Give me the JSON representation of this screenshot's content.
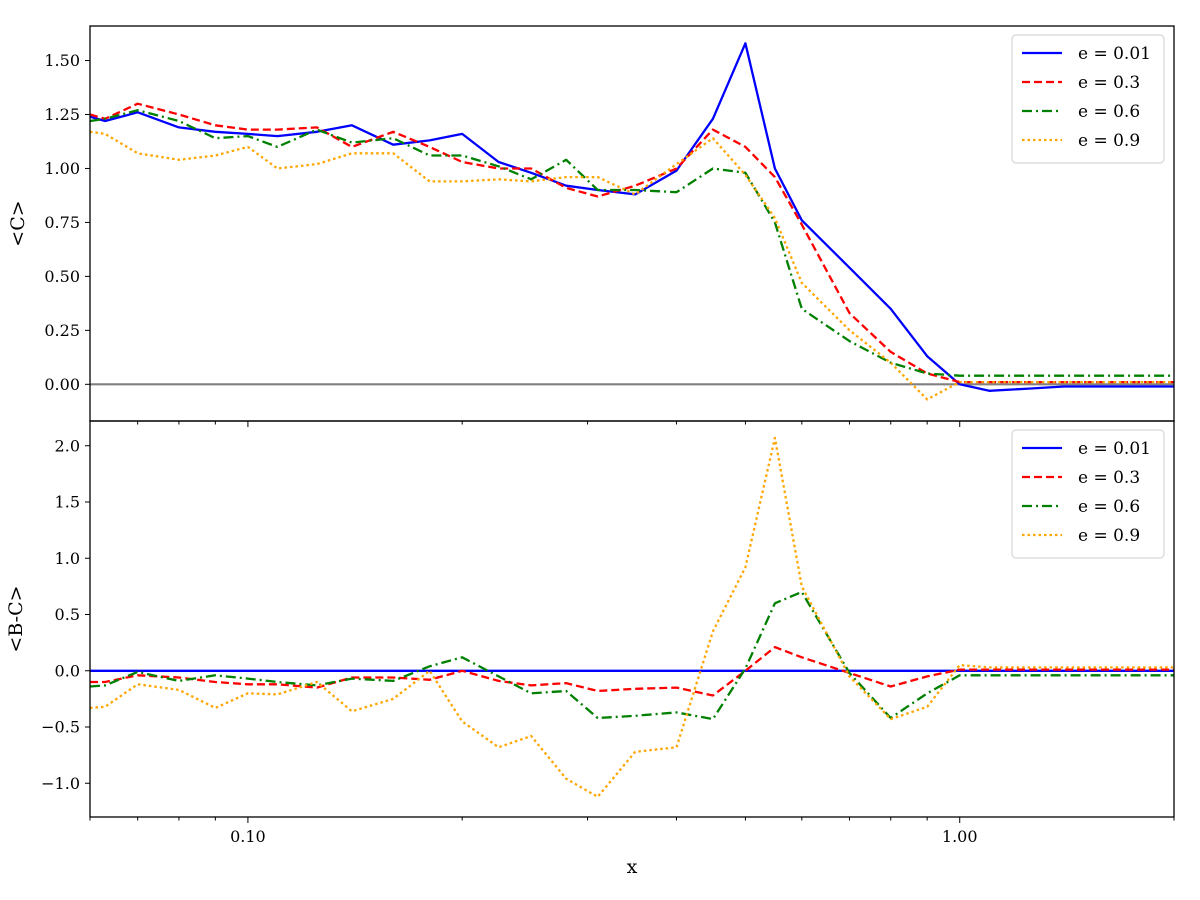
{
  "chart_data": [
    {
      "type": "line",
      "title": "",
      "xlabel": "",
      "ylabel": "<C>",
      "xscale": "log",
      "xlim": [
        0.06,
        2.0
      ],
      "ylim": [
        -0.17,
        1.66
      ],
      "yticks": [
        0.0,
        0.25,
        0.5,
        0.75,
        1.0,
        1.25,
        1.5
      ],
      "ytick_labels": [
        "0.00",
        "0.25",
        "0.50",
        "0.75",
        "1.00",
        "1.25",
        "1.50"
      ],
      "show_xtick_labels": false,
      "hline": {
        "y": 0.0,
        "color": "#808080"
      },
      "legend_position": "top-right",
      "series": [
        {
          "name": "e = 0.01",
          "color": "#0000ff",
          "style": "solid",
          "x": [
            0.06,
            0.063,
            0.07,
            0.08,
            0.09,
            0.1,
            0.11,
            0.125,
            0.14,
            0.16,
            0.18,
            0.2,
            0.225,
            0.25,
            0.28,
            0.31,
            0.35,
            0.4,
            0.45,
            0.5,
            0.55,
            0.6,
            0.7,
            0.8,
            0.9,
            1.0,
            1.1,
            1.25,
            1.4,
            1.6,
            1.8,
            2.0
          ],
          "y": [
            1.24,
            1.22,
            1.26,
            1.19,
            1.17,
            1.16,
            1.15,
            1.17,
            1.2,
            1.11,
            1.13,
            1.16,
            1.03,
            0.98,
            0.92,
            0.9,
            0.88,
            0.99,
            1.23,
            1.58,
            1.0,
            0.76,
            0.54,
            0.35,
            0.13,
            0.0,
            -0.03,
            -0.02,
            -0.01,
            -0.01,
            -0.01,
            -0.01
          ]
        },
        {
          "name": "e = 0.3",
          "color": "#ff0000",
          "style": "dashed",
          "x": [
            0.06,
            0.063,
            0.07,
            0.08,
            0.09,
            0.1,
            0.11,
            0.125,
            0.14,
            0.16,
            0.18,
            0.2,
            0.225,
            0.25,
            0.28,
            0.31,
            0.35,
            0.4,
            0.45,
            0.5,
            0.55,
            0.6,
            0.7,
            0.8,
            0.9,
            1.0,
            1.1,
            1.25,
            1.4,
            1.6,
            1.8,
            2.0
          ],
          "y": [
            1.25,
            1.23,
            1.3,
            1.25,
            1.2,
            1.18,
            1.18,
            1.19,
            1.1,
            1.17,
            1.1,
            1.03,
            1.0,
            1.0,
            0.91,
            0.87,
            0.92,
            1.0,
            1.18,
            1.1,
            0.96,
            0.74,
            0.33,
            0.15,
            0.05,
            0.01,
            0.01,
            0.01,
            0.01,
            0.01,
            0.01,
            0.01
          ]
        },
        {
          "name": "e = 0.6",
          "color": "#008000",
          "style": "dashdot",
          "x": [
            0.06,
            0.063,
            0.07,
            0.08,
            0.09,
            0.1,
            0.11,
            0.125,
            0.14,
            0.16,
            0.18,
            0.2,
            0.225,
            0.25,
            0.28,
            0.31,
            0.35,
            0.4,
            0.45,
            0.5,
            0.55,
            0.6,
            0.7,
            0.8,
            0.9,
            1.0,
            1.1,
            1.25,
            1.4,
            1.6,
            1.8,
            2.0
          ],
          "y": [
            1.22,
            1.23,
            1.27,
            1.22,
            1.14,
            1.15,
            1.1,
            1.18,
            1.12,
            1.14,
            1.06,
            1.06,
            1.01,
            0.95,
            1.04,
            0.9,
            0.9,
            0.89,
            1.0,
            0.98,
            0.75,
            0.35,
            0.2,
            0.1,
            0.05,
            0.04,
            0.04,
            0.04,
            0.04,
            0.04,
            0.04,
            0.04
          ]
        },
        {
          "name": "e = 0.9",
          "color": "#ffa500",
          "style": "dotted",
          "x": [
            0.06,
            0.063,
            0.07,
            0.08,
            0.09,
            0.1,
            0.11,
            0.125,
            0.14,
            0.16,
            0.18,
            0.2,
            0.225,
            0.25,
            0.28,
            0.31,
            0.35,
            0.4,
            0.45,
            0.5,
            0.55,
            0.6,
            0.7,
            0.8,
            0.9,
            1.0,
            1.1,
            1.25,
            1.4,
            1.6,
            1.8,
            2.0
          ],
          "y": [
            1.17,
            1.16,
            1.07,
            1.04,
            1.06,
            1.1,
            1.0,
            1.02,
            1.07,
            1.07,
            0.94,
            0.94,
            0.95,
            0.94,
            0.96,
            0.96,
            0.88,
            1.02,
            1.14,
            0.97,
            0.77,
            0.47,
            0.25,
            0.1,
            -0.07,
            0.01,
            0.01,
            0.01,
            0.01,
            0.01,
            0.01,
            0.01
          ]
        }
      ]
    },
    {
      "type": "line",
      "title": "",
      "xlabel": "x",
      "ylabel": "<B-C>",
      "xscale": "log",
      "xlim": [
        0.06,
        2.0
      ],
      "ylim": [
        -1.3,
        2.22
      ],
      "yticks": [
        -1.0,
        -0.5,
        0.0,
        0.5,
        1.0,
        1.5,
        2.0
      ],
      "ytick_labels": [
        "−1.0",
        "−0.5",
        "0.0",
        "0.5",
        "1.0",
        "1.5",
        "2.0"
      ],
      "xticks": [
        0.1,
        1.0
      ],
      "xtick_labels": [
        "0.10",
        "1.00"
      ],
      "show_xtick_labels": true,
      "legend_position": "top-right",
      "series": [
        {
          "name": "e = 0.01",
          "color": "#0000ff",
          "style": "solid",
          "x": [
            0.06,
            0.063,
            0.07,
            0.08,
            0.09,
            0.1,
            0.11,
            0.125,
            0.14,
            0.16,
            0.18,
            0.2,
            0.225,
            0.25,
            0.28,
            0.31,
            0.35,
            0.4,
            0.45,
            0.5,
            0.55,
            0.6,
            0.7,
            0.8,
            0.9,
            1.0,
            1.1,
            1.25,
            1.4,
            1.6,
            1.8,
            2.0
          ],
          "y": [
            0.0,
            0.0,
            0.0,
            0.0,
            0.0,
            0.0,
            0.0,
            0.0,
            0.0,
            0.0,
            0.0,
            0.0,
            0.0,
            0.0,
            0.0,
            0.0,
            0.0,
            0.0,
            0.0,
            0.0,
            0.0,
            0.0,
            0.0,
            0.0,
            0.0,
            0.0,
            0.0,
            0.0,
            0.0,
            0.0,
            0.0,
            0.0
          ]
        },
        {
          "name": "e = 0.3",
          "color": "#ff0000",
          "style": "dashed",
          "x": [
            0.06,
            0.063,
            0.07,
            0.08,
            0.09,
            0.1,
            0.11,
            0.125,
            0.14,
            0.16,
            0.18,
            0.2,
            0.225,
            0.25,
            0.28,
            0.31,
            0.35,
            0.4,
            0.45,
            0.5,
            0.55,
            0.6,
            0.7,
            0.8,
            0.9,
            1.0,
            1.1,
            1.25,
            1.4,
            1.6,
            1.8,
            2.0
          ],
          "y": [
            -0.1,
            -0.1,
            -0.04,
            -0.06,
            -0.1,
            -0.12,
            -0.12,
            -0.15,
            -0.06,
            -0.06,
            -0.08,
            0.0,
            -0.09,
            -0.13,
            -0.11,
            -0.18,
            -0.16,
            -0.15,
            -0.22,
            0.0,
            0.21,
            0.12,
            -0.02,
            -0.14,
            -0.05,
            0.01,
            0.01,
            0.01,
            0.01,
            0.01,
            0.01,
            0.01
          ]
        },
        {
          "name": "e = 0.6",
          "color": "#008000",
          "style": "dashdot",
          "x": [
            0.06,
            0.063,
            0.07,
            0.08,
            0.09,
            0.1,
            0.11,
            0.125,
            0.14,
            0.16,
            0.18,
            0.2,
            0.225,
            0.25,
            0.28,
            0.31,
            0.35,
            0.4,
            0.45,
            0.5,
            0.55,
            0.6,
            0.7,
            0.8,
            0.9,
            1.0,
            1.1,
            1.25,
            1.4,
            1.6,
            1.8,
            2.0
          ],
          "y": [
            -0.14,
            -0.13,
            -0.01,
            -0.09,
            -0.04,
            -0.07,
            -0.1,
            -0.13,
            -0.07,
            -0.09,
            0.04,
            0.12,
            -0.05,
            -0.2,
            -0.18,
            -0.42,
            -0.4,
            -0.37,
            -0.43,
            0.02,
            0.6,
            0.7,
            -0.02,
            -0.42,
            -0.2,
            -0.04,
            -0.04,
            -0.04,
            -0.04,
            -0.04,
            -0.04,
            -0.04
          ]
        },
        {
          "name": "e = 0.9",
          "color": "#ffa500",
          "style": "dotted",
          "x": [
            0.06,
            0.063,
            0.07,
            0.08,
            0.09,
            0.1,
            0.11,
            0.125,
            0.14,
            0.16,
            0.18,
            0.2,
            0.225,
            0.25,
            0.28,
            0.31,
            0.35,
            0.4,
            0.45,
            0.5,
            0.55,
            0.6,
            0.7,
            0.8,
            0.9,
            1.0,
            1.1,
            1.25,
            1.4,
            1.6,
            1.8,
            2.0
          ],
          "y": [
            -0.33,
            -0.32,
            -0.12,
            -0.17,
            -0.33,
            -0.2,
            -0.21,
            -0.1,
            -0.36,
            -0.25,
            0.0,
            -0.45,
            -0.68,
            -0.58,
            -0.96,
            -1.12,
            -0.72,
            -0.68,
            0.35,
            0.92,
            2.07,
            0.75,
            -0.05,
            -0.43,
            -0.32,
            0.05,
            0.03,
            0.03,
            0.03,
            0.03,
            0.03,
            0.03
          ]
        }
      ]
    }
  ]
}
